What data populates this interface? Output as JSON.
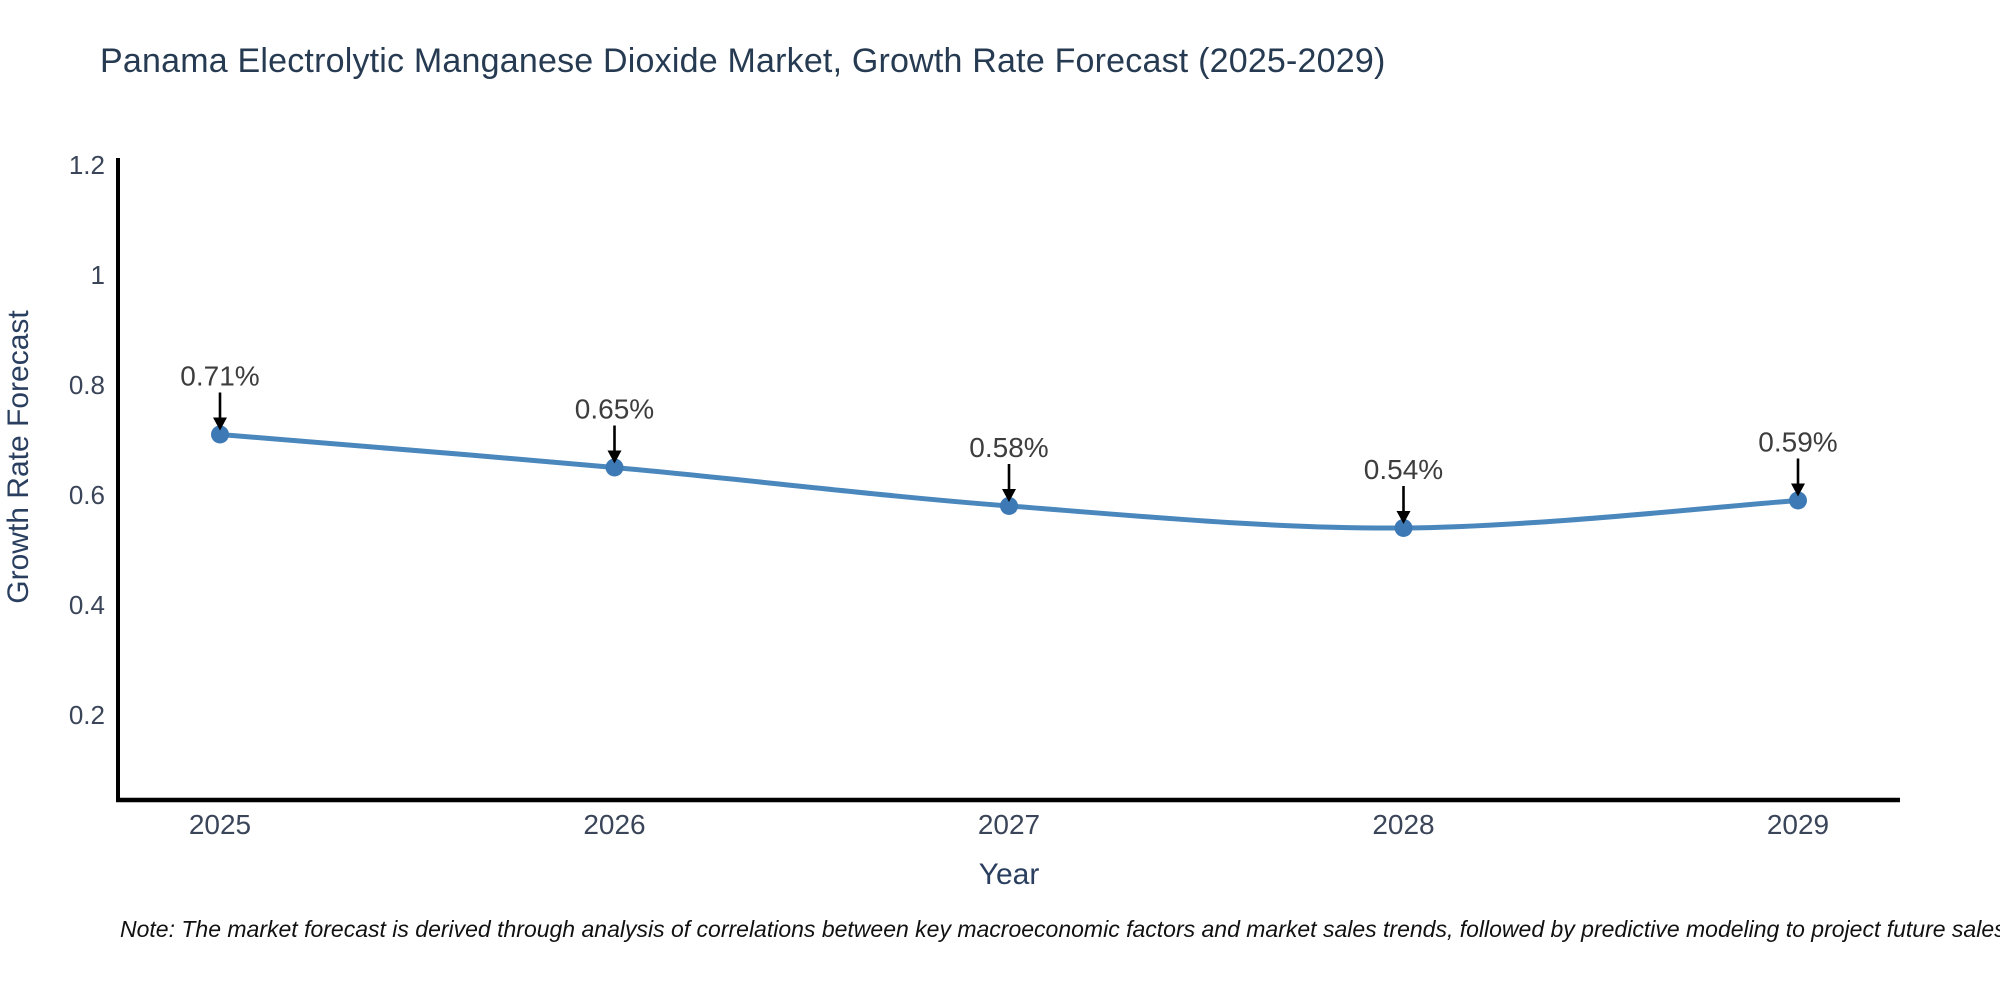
{
  "title": "Panama Electrolytic Manganese Dioxide Market, Growth Rate Forecast (2025-2029)",
  "note": "Note: The market forecast is derived through analysis of correlations between key macroeconomic factors and market sales trends, followed by predictive modeling to project future sales",
  "chart_data": {
    "type": "line",
    "title": "Panama Electrolytic Manganese Dioxide Market, Growth Rate Forecast (2025-2029)",
    "xlabel": "Year",
    "ylabel": "Growth Rate Forecast",
    "categories": [
      "2025",
      "2026",
      "2027",
      "2028",
      "2029"
    ],
    "series": [
      {
        "name": "Growth Rate Forecast",
        "values": [
          0.71,
          0.65,
          0.58,
          0.54,
          0.59
        ],
        "point_labels": [
          "0.71%",
          "0.65%",
          "0.58%",
          "0.54%",
          "0.59%"
        ]
      }
    ],
    "yticks": [
      0.2,
      0.4,
      0.6,
      0.8,
      1,
      1.2
    ],
    "ylim": [
      0.0455,
      1.209
    ],
    "grid": false,
    "legend": "none",
    "line_shape": "spline",
    "colors": {
      "line": "#4a87bd",
      "marker": "#3d7ab5",
      "axis": "#000000",
      "annotation_text": "#3d3d3d",
      "arrow": "#000000",
      "title_text": "#263b52",
      "axis_title_text": "#2a3f5f",
      "tick_text": "#3b4559"
    }
  }
}
